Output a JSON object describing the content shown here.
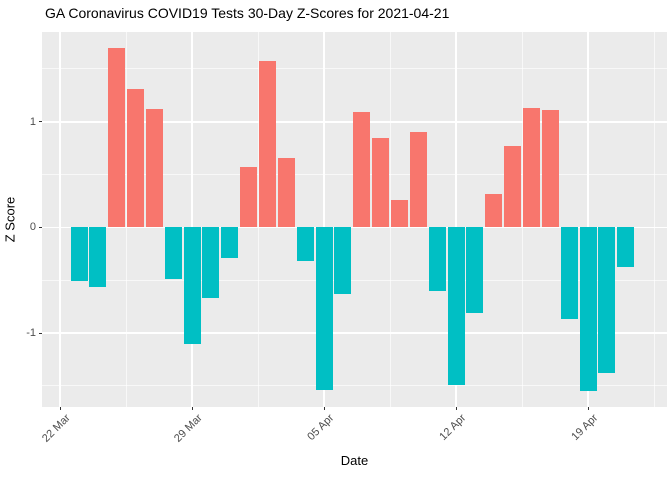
{
  "chart_data": {
    "type": "bar",
    "title": "GA Coronavirus COVID19 Tests 30-Day Z-Scores for 2021-04-21",
    "xlabel": "Date",
    "ylabel": "Z Score",
    "legend_position": "none",
    "grid": true,
    "categories": [
      "2021-03-23",
      "2021-03-24",
      "2021-03-25",
      "2021-03-26",
      "2021-03-27",
      "2021-03-28",
      "2021-03-29",
      "2021-03-30",
      "2021-03-31",
      "2021-04-01",
      "2021-04-02",
      "2021-04-03",
      "2021-04-04",
      "2021-04-05",
      "2021-04-06",
      "2021-04-07",
      "2021-04-08",
      "2021-04-09",
      "2021-04-10",
      "2021-04-11",
      "2021-04-12",
      "2021-04-13",
      "2021-04-14",
      "2021-04-15",
      "2021-04-16",
      "2021-04-17",
      "2021-04-18",
      "2021-04-19",
      "2021-04-20",
      "2021-04-21"
    ],
    "values": [
      -0.51,
      -0.56,
      1.7,
      1.31,
      1.12,
      -0.49,
      -1.1,
      -0.67,
      -0.29,
      0.57,
      1.58,
      0.66,
      -0.32,
      -1.54,
      -0.63,
      1.09,
      0.85,
      0.26,
      0.9,
      -0.6,
      -1.49,
      -0.81,
      0.32,
      0.77,
      1.13,
      1.11,
      -0.87,
      -1.55,
      -1.38,
      -0.37
    ],
    "ylim": [
      -1.7,
      1.85
    ],
    "y_major_ticks": [
      -1,
      0,
      1
    ],
    "y_major_tick_labels": [
      "-1",
      "0",
      "1"
    ],
    "y_minor_ticks": [
      -1.5,
      -0.5,
      0.5,
      1.5
    ],
    "x_tick_labels": [
      "22 Mar",
      "29 Mar",
      "05 Apr",
      "12 Apr",
      "19 Apr"
    ],
    "x_tick_day_offsets": [
      -1,
      6,
      13,
      20,
      27
    ],
    "x_minor_day_offsets": [
      2.5,
      9.5,
      16.5,
      23.5,
      30.5
    ],
    "colors": {
      "positive_bar": "#F8766D",
      "negative_bar": "#00BFC4",
      "panel_background": "#EBEBEB",
      "gridline": "#FFFFFF",
      "axis_text": "#4D4D4D",
      "title_text": "#000000"
    }
  }
}
